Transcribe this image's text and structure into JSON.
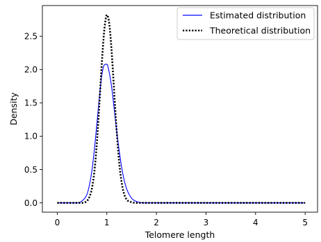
{
  "chart_data": {
    "type": "line",
    "title": "",
    "xlabel": "Telomere length",
    "ylabel": "Density",
    "xlim": [
      -0.3,
      5.25
    ],
    "ylim": [
      -0.14,
      2.96
    ],
    "xticks": [
      0,
      1,
      2,
      3,
      4,
      5
    ],
    "yticks": [
      0.0,
      0.5,
      1.0,
      1.5,
      2.0,
      2.5
    ],
    "xtick_labels": [
      "0",
      "1",
      "2",
      "3",
      "4",
      "5"
    ],
    "ytick_labels": [
      "0.0",
      "0.5",
      "1.0",
      "1.5",
      "2.0",
      "2.5"
    ],
    "grid": false,
    "legend_placement": "top-right",
    "series": [
      {
        "name": "Estimated distribution",
        "color": "#0000ff",
        "style": "solid",
        "x": [
          0,
          0.4,
          0.5,
          0.6,
          0.65,
          0.7,
          0.75,
          0.8,
          0.85,
          0.9,
          0.95,
          1.0,
          1.05,
          1.1,
          1.15,
          1.2,
          1.25,
          1.3,
          1.35,
          1.4,
          1.5,
          1.6,
          1.8,
          2.0,
          5.0
        ],
        "y": [
          0.0,
          0.0,
          0.03,
          0.13,
          0.27,
          0.49,
          0.81,
          1.19,
          1.59,
          1.92,
          2.07,
          2.08,
          1.95,
          1.72,
          1.4,
          1.07,
          0.78,
          0.53,
          0.34,
          0.21,
          0.07,
          0.02,
          0.0,
          0.0,
          0.0
        ]
      },
      {
        "name": "Theoretical distribution",
        "color": "#000000",
        "style": "dotted",
        "x": [
          0,
          0.5,
          0.6,
          0.65,
          0.7,
          0.75,
          0.8,
          0.85,
          0.9,
          0.95,
          1.0,
          1.05,
          1.1,
          1.15,
          1.2,
          1.25,
          1.3,
          1.35,
          1.4,
          1.5,
          1.6,
          1.8,
          5.0
        ],
        "y": [
          0.0,
          0.0,
          0.03,
          0.09,
          0.22,
          0.48,
          0.91,
          1.49,
          2.11,
          2.6,
          2.82,
          2.68,
          2.24,
          1.64,
          1.06,
          0.6,
          0.3,
          0.13,
          0.05,
          0.01,
          0.0,
          0.0,
          0.0
        ]
      }
    ]
  }
}
